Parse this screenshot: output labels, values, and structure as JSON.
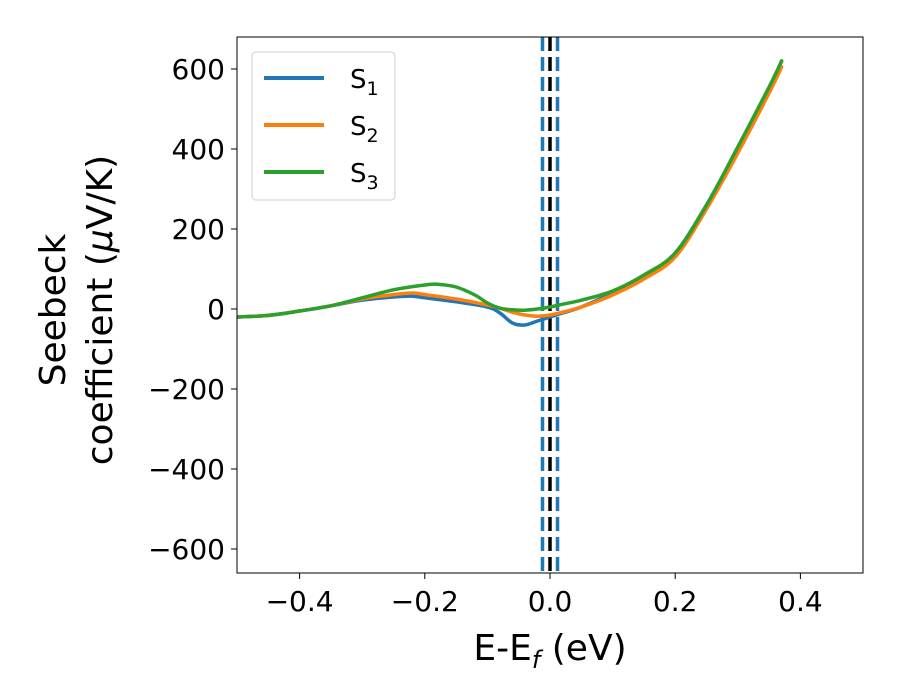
{
  "chart_data": {
    "type": "line",
    "xlabel": "E-E",
    "xlabel_sub": "f",
    "xlabel_unit": " (eV)",
    "ylabel_line1": "Seebeck",
    "ylabel_line2_pre": "coefficient  (",
    "ylabel_mu": "μ",
    "ylabel_line2_post": "V/K)",
    "xlim": [
      -0.5,
      0.5
    ],
    "ylim": [
      -660,
      680
    ],
    "xticks": [
      -0.4,
      -0.2,
      0.0,
      0.2,
      0.4
    ],
    "xtick_labels": [
      "−0.4",
      "−0.2",
      "0.0",
      "0.2",
      "0.4"
    ],
    "yticks": [
      -600,
      -400,
      -200,
      0,
      200,
      400,
      600
    ],
    "ytick_labels": [
      "−600",
      "−400",
      "−200",
      "0",
      "200",
      "400",
      "600"
    ],
    "legend_position": "top-left",
    "vlines": [
      {
        "x": 0.0,
        "color": "#000000",
        "style": "dashed"
      },
      {
        "x": -0.012,
        "color": "#1f77b4",
        "style": "dashed"
      },
      {
        "x": 0.012,
        "color": "#1f77b4",
        "style": "dashed"
      }
    ],
    "series": [
      {
        "name": "S",
        "sub": "1",
        "color": "#1f77b4",
        "x": [
          -0.5,
          -0.45,
          -0.4,
          -0.35,
          -0.3,
          -0.25,
          -0.22,
          -0.2,
          -0.15,
          -0.1,
          -0.08,
          -0.06,
          -0.04,
          -0.02,
          0.0,
          0.02,
          0.05,
          0.1,
          0.15,
          0.2,
          0.25,
          0.3,
          0.35,
          0.37
        ],
        "y": [
          -20,
          -16,
          -5,
          8,
          22,
          30,
          32,
          28,
          18,
          5,
          -10,
          -35,
          -40,
          -30,
          -20,
          -10,
          5,
          40,
          80,
          140,
          260,
          400,
          550,
          620
        ]
      },
      {
        "name": "S",
        "sub": "2",
        "color": "#ff7f0e",
        "x": [
          -0.5,
          -0.45,
          -0.4,
          -0.35,
          -0.3,
          -0.25,
          -0.22,
          -0.2,
          -0.15,
          -0.1,
          -0.08,
          -0.06,
          -0.04,
          -0.02,
          0.0,
          0.02,
          0.05,
          0.1,
          0.15,
          0.2,
          0.25,
          0.3,
          0.35,
          0.37
        ],
        "y": [
          -20,
          -16,
          -5,
          8,
          25,
          36,
          40,
          36,
          25,
          10,
          2,
          -8,
          -15,
          -18,
          -15,
          -8,
          5,
          35,
          75,
          130,
          250,
          390,
          540,
          605
        ]
      },
      {
        "name": "S",
        "sub": "3",
        "color": "#2ca02c",
        "x": [
          -0.5,
          -0.45,
          -0.4,
          -0.35,
          -0.3,
          -0.25,
          -0.2,
          -0.18,
          -0.15,
          -0.12,
          -0.1,
          -0.08,
          -0.06,
          -0.04,
          -0.02,
          0.0,
          0.02,
          0.05,
          0.1,
          0.15,
          0.2,
          0.25,
          0.3,
          0.35,
          0.37
        ],
        "y": [
          -20,
          -16,
          -5,
          8,
          28,
          48,
          60,
          62,
          55,
          35,
          15,
          2,
          -2,
          -3,
          0,
          5,
          12,
          22,
          45,
          85,
          140,
          260,
          405,
          555,
          620
        ]
      }
    ]
  }
}
